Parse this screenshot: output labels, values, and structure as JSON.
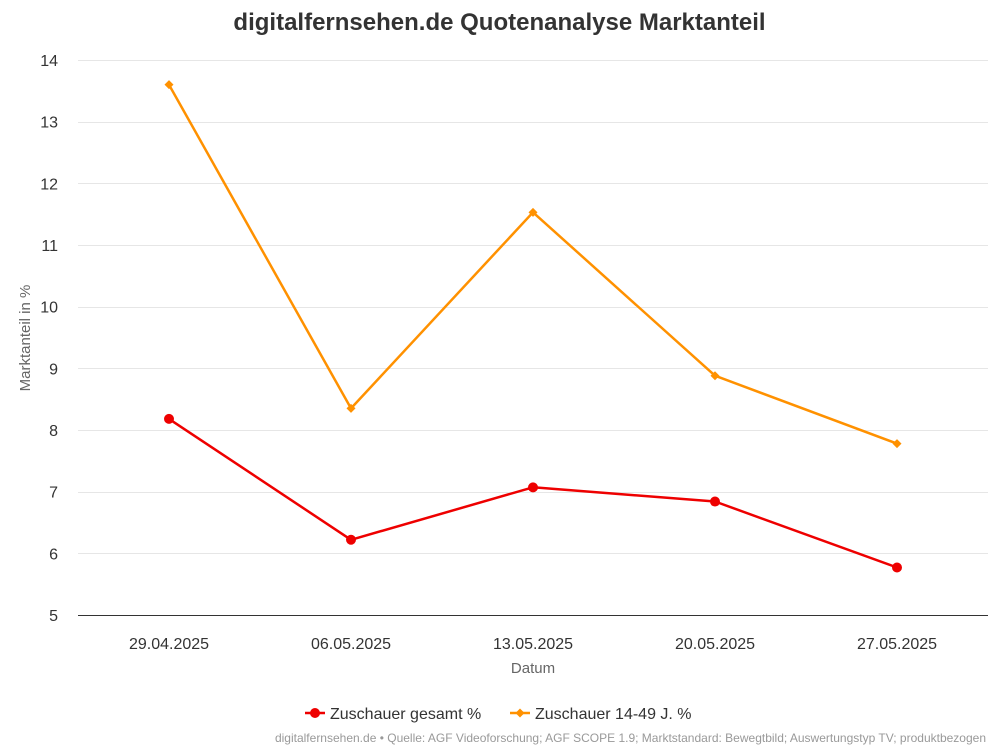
{
  "chart_data": {
    "type": "line",
    "title": "digitalfernsehen.de Quotenanalyse Marktanteil",
    "xlabel": "Datum",
    "ylabel": "Marktanteil in %",
    "ylim": [
      5,
      14
    ],
    "yticks": [
      "5",
      "6",
      "7",
      "8",
      "9",
      "10",
      "11",
      "12",
      "13",
      "14"
    ],
    "grid": true,
    "legend_position": "bottom",
    "categories": [
      "29.04.2025",
      "06.05.2025",
      "13.05.2025",
      "20.05.2025",
      "27.05.2025"
    ],
    "series": [
      {
        "name": "Zuschauer gesamt %",
        "values": [
          8.18,
          6.22,
          7.07,
          6.84,
          5.77
        ],
        "color": "#ee0000",
        "marker": "circle"
      },
      {
        "name": "Zuschauer 14-49 J. %",
        "values": [
          13.6,
          8.35,
          11.53,
          8.88,
          7.78
        ],
        "color": "#ff9100",
        "marker": "diamond"
      }
    ]
  },
  "source_text": "digitalfernsehen.de • Quelle: AGF Videoforschung; AGF SCOPE 1.9; Marktstandard: Bewegtbild; Auswertungstyp TV; produktbezogen"
}
